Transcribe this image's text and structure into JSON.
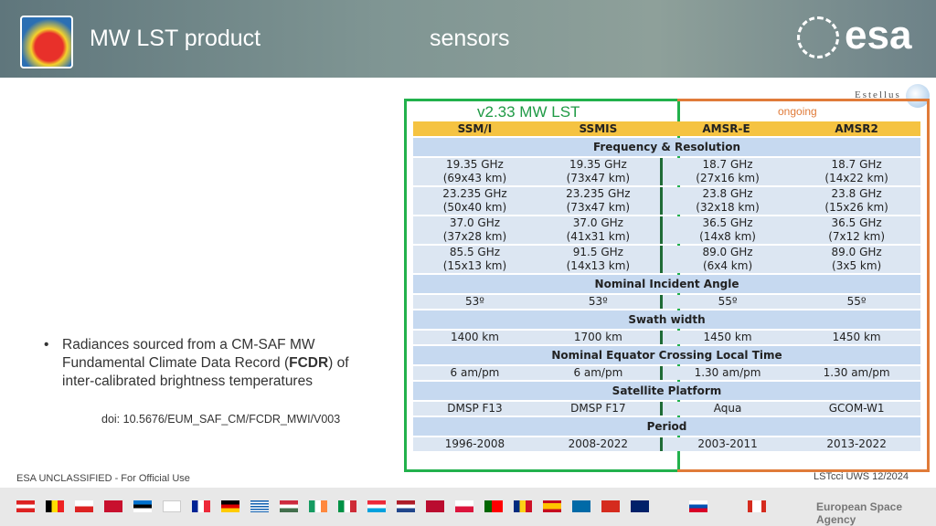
{
  "header": {
    "title": "MW LST product",
    "subtitle": "sensors",
    "logo": "esa",
    "partner": "Estellus"
  },
  "table": {
    "group_label": "v2.33 MW LST",
    "ongoing_label": "ongoing",
    "columns": [
      "SSM/I",
      "SSMIS",
      "AMSR-E",
      "AMSR2"
    ],
    "rows": [
      {
        "section": "Frequency & Resolution"
      },
      {
        "cells": [
          "19.35 GHz\n(69x43 km)",
          "19.35 GHz\n(73x47 km)",
          "18.7 GHz\n(27x16 km)",
          "18.7 GHz\n(14x22 km)"
        ]
      },
      {
        "cells": [
          "23.235 GHz\n(50x40 km)",
          "23.235 GHz\n(73x47 km)",
          "23.8 GHz\n(32x18 km)",
          "23.8 GHz\n(15x26 km)"
        ]
      },
      {
        "cells": [
          "37.0 GHz\n(37x28 km)",
          "37.0 GHz\n(41x31 km)",
          "36.5 GHz\n(14x8 km)",
          "36.5 GHz\n(7x12 km)"
        ]
      },
      {
        "cells": [
          "85.5 GHz\n(15x13 km)",
          "91.5 GHz\n(14x13 km)",
          "89.0 GHz\n(6x4 km)",
          "89.0 GHz\n(3x5 km)"
        ]
      },
      {
        "section": "Nominal Incident Angle"
      },
      {
        "cells": [
          "53º",
          "53º",
          "55º",
          "55º"
        ]
      },
      {
        "section": "Swath width"
      },
      {
        "cells": [
          "1400 km",
          "1700 km",
          "1450 km",
          "1450 km"
        ]
      },
      {
        "section": "Nominal Equator Crossing Local Time"
      },
      {
        "cells": [
          "6 am/pm",
          "6 am/pm",
          "1.30 am/pm",
          "1.30 am/pm"
        ]
      },
      {
        "section": "Satellite Platform"
      },
      {
        "cells": [
          "DMSP F13",
          "DMSP F17",
          "Aqua",
          "GCOM-W1"
        ]
      },
      {
        "section": "Period"
      },
      {
        "cells": [
          "1996-2008",
          "2008-2022",
          "2003-2011",
          "2013-2022"
        ]
      }
    ]
  },
  "bullet": {
    "text_before": "Radiances sourced from a CM-SAF MW Fundamental Climate Data Record (",
    "text_bold": "FCDR",
    "text_after": ") of inter-calibrated brightness temperatures"
  },
  "doi": "doi: 10.5676/EUM_SAF_CM/FCDR_MWI/V003",
  "footer": {
    "classification": "ESA UNCLASSIFIED - For Official Use",
    "event": "LSTcci UWS 12/2024",
    "agency": "European Space Agency"
  }
}
